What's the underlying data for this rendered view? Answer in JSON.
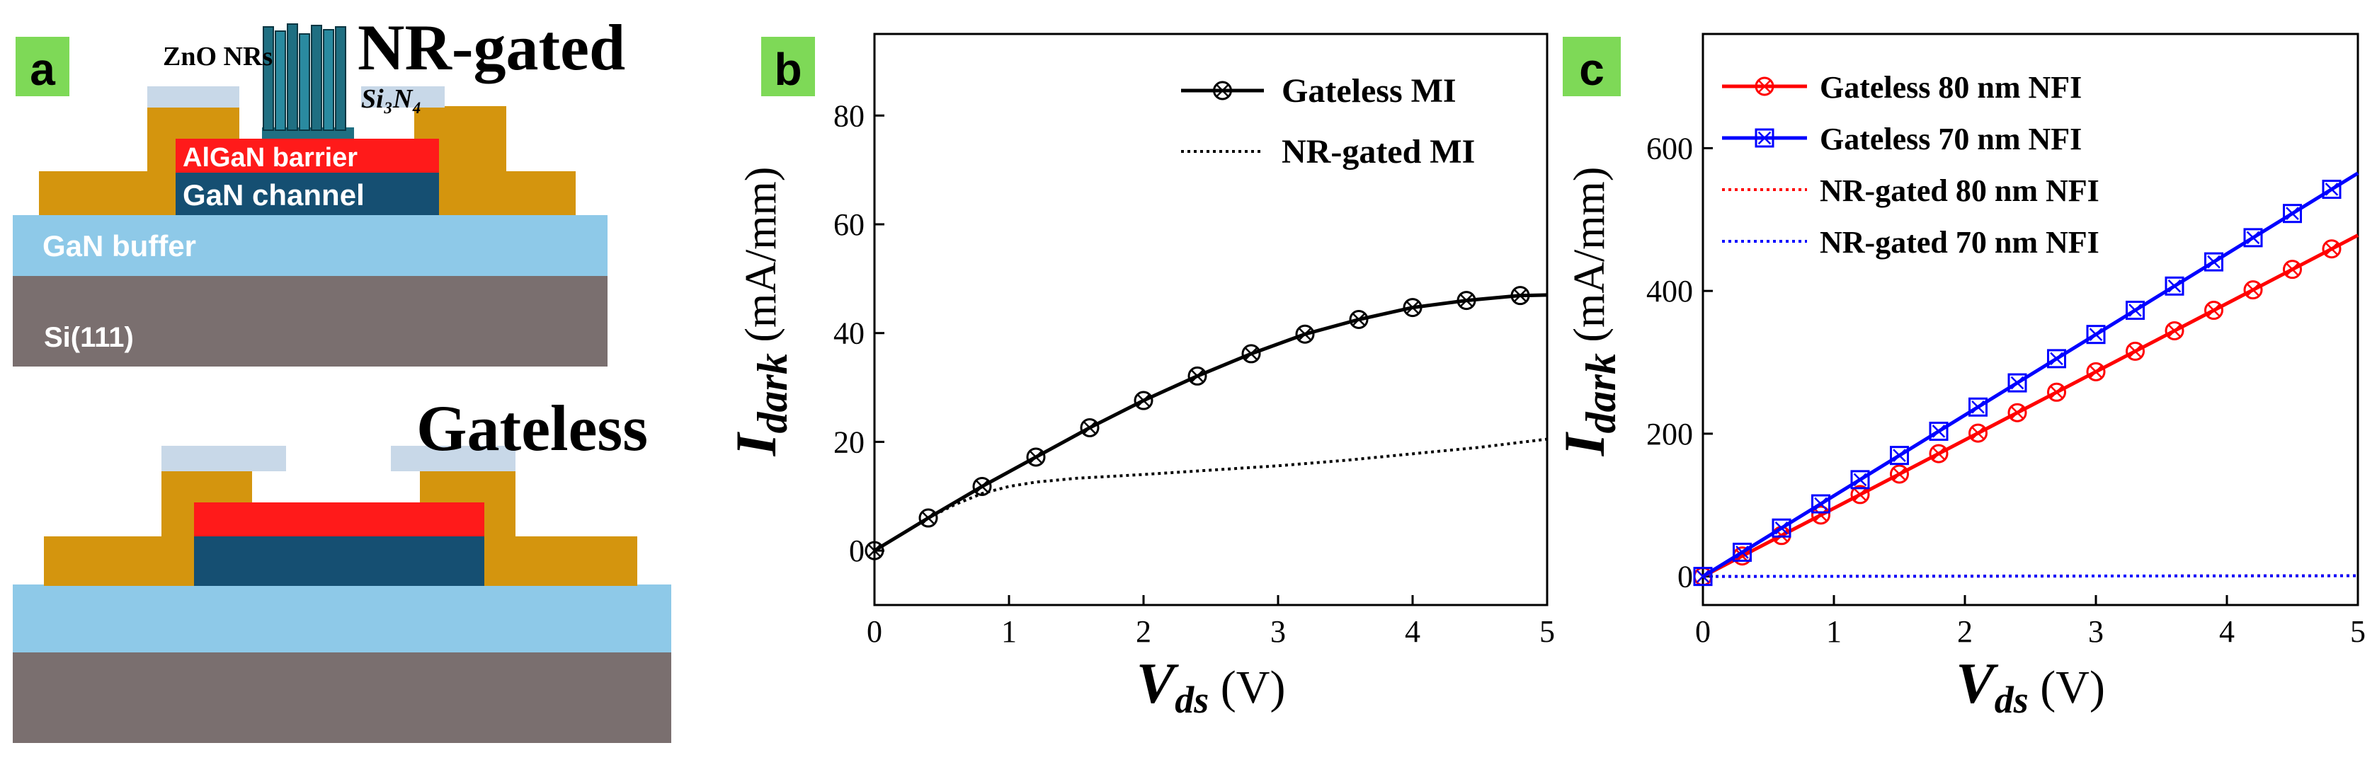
{
  "colors": {
    "panel_label_bg": "#7ed957",
    "gold": "#d4950e",
    "red_layer": "#ff1a1a",
    "navy_layer": "#154f72",
    "light_blue": "#8ec9e8",
    "gray": "#7a6f6f",
    "si3n4": "#c8d8e8",
    "zno_nr": "#1f6f82",
    "red_series": "#ff0000",
    "blue_series": "#0000ff",
    "black": "#000000"
  },
  "panel_a": {
    "label": "a",
    "top": {
      "title": "NR-gated",
      "zno_label": "ZnO NRs",
      "si3n4_label": "Si₃N₄",
      "barrier_label": "AlGaN barrier",
      "channel_label": "GaN channel",
      "buffer_label": "GaN buffer",
      "substrate_label": "Si(111)"
    },
    "bottom": {
      "title": "Gateless"
    }
  },
  "chart_data": [
    {
      "panel": "b",
      "type": "line",
      "xlabel_main": "V",
      "xlabel_sub": "ds",
      "xlabel_unit": "(V)",
      "ylabel_main": "I",
      "ylabel_sub": "dark",
      "ylabel_unit": "(mA/mm)",
      "xlim": [
        0,
        5
      ],
      "ylim": [
        -10,
        95
      ],
      "xticks": [
        0,
        1,
        2,
        3,
        4,
        5
      ],
      "yticks": [
        0,
        20,
        40,
        60,
        80
      ],
      "legend_position": "top-right",
      "series": [
        {
          "name": "Gateless MI",
          "style": "solid",
          "color": "#000000",
          "marker": "x-circle",
          "x": [
            0,
            0.4,
            0.8,
            1.2,
            1.6,
            2.0,
            2.4,
            2.8,
            3.2,
            3.6,
            4.0,
            4.4,
            4.8,
            5.0
          ],
          "y": [
            0,
            6,
            11.8,
            17.2,
            22.6,
            27.6,
            32.1,
            36.2,
            39.8,
            42.5,
            44.7,
            46.0,
            46.9,
            47.0
          ],
          "marker_x": [
            0,
            0.4,
            0.8,
            1.2,
            1.6,
            2.0,
            2.4,
            2.8,
            3.2,
            3.6,
            4.0,
            4.4,
            4.8
          ]
        },
        {
          "name": "NR-gated MI",
          "style": "dotted",
          "color": "#000000",
          "marker": "none",
          "x": [
            0,
            0.2,
            0.4,
            0.6,
            0.8,
            1.0,
            1.2,
            1.5,
            2.0,
            2.5,
            3.0,
            3.5,
            4.0,
            4.5,
            5.0
          ],
          "y": [
            0,
            3,
            6,
            8.5,
            10.5,
            11.8,
            12.6,
            13.3,
            14.0,
            14.8,
            15.6,
            16.6,
            17.8,
            19.0,
            20.5
          ]
        }
      ]
    },
    {
      "panel": "c",
      "type": "line",
      "xlabel_main": "V",
      "xlabel_sub": "ds",
      "xlabel_unit": "(V)",
      "ylabel_main": "I",
      "ylabel_sub": "dark",
      "ylabel_unit": "(mA/mm)",
      "xlim": [
        0,
        5
      ],
      "ylim": [
        -40,
        760
      ],
      "xticks": [
        0,
        1,
        2,
        3,
        4,
        5
      ],
      "yticks": [
        0,
        200,
        400,
        600
      ],
      "legend_position": "top-left",
      "series": [
        {
          "name": "Gateless 80 nm NFI",
          "style": "solid",
          "color": "#ff0000",
          "marker": "x-circle",
          "x": [
            0,
            5
          ],
          "y": [
            0,
            478
          ],
          "marker_x": [
            0,
            0.3,
            0.6,
            0.9,
            1.2,
            1.5,
            1.8,
            2.1,
            2.4,
            2.7,
            3.0,
            3.3,
            3.6,
            3.9,
            4.2,
            4.5,
            4.8
          ]
        },
        {
          "name": "Gateless 70 nm NFI",
          "style": "solid",
          "color": "#0000ff",
          "marker": "x-square",
          "x": [
            0,
            5
          ],
          "y": [
            0,
            565
          ],
          "marker_x": [
            0,
            0.3,
            0.6,
            0.9,
            1.2,
            1.5,
            1.8,
            2.1,
            2.4,
            2.7,
            3.0,
            3.3,
            3.6,
            3.9,
            4.2,
            4.5,
            4.8
          ]
        },
        {
          "name": "NR-gated 80 nm NFI",
          "style": "dotted",
          "color": "#ff0000",
          "marker": "none",
          "x": [
            0,
            5
          ],
          "y": [
            0,
            1
          ]
        },
        {
          "name": "NR-gated 70 nm NFI",
          "style": "dotted",
          "color": "#0000ff",
          "marker": "none",
          "x": [
            0,
            5
          ],
          "y": [
            0,
            1
          ]
        }
      ]
    }
  ]
}
